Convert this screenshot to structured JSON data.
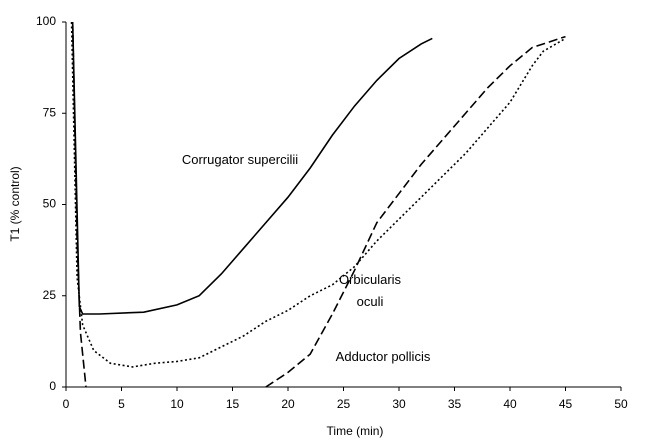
{
  "chart_data": {
    "type": "line",
    "xlabel": "Time (min)",
    "ylabel": "T1 (% control)",
    "xlim": [
      0,
      50
    ],
    "xticks": [
      0,
      5,
      10,
      15,
      20,
      25,
      30,
      35,
      40,
      45,
      50
    ],
    "ylim": [
      0,
      100
    ],
    "yticks": [
      0,
      25,
      50,
      75,
      100
    ],
    "grid": false,
    "series": [
      {
        "name": "Corrugator supercilii",
        "color": "#000000",
        "style": "solid",
        "x": [
          0.6,
          1.2,
          1.5,
          3,
          7,
          10,
          12,
          14,
          16,
          18,
          20,
          22,
          24,
          26,
          28,
          30,
          32,
          33
        ],
        "values": [
          100,
          22,
          20,
          20,
          20.5,
          22.5,
          25,
          31,
          38,
          45,
          52,
          60,
          69,
          77,
          84,
          90,
          94,
          95.5
        ]
      },
      {
        "name": "Orbicularis oculi",
        "color": "#000000",
        "style": "dotted",
        "x": [
          0.5,
          1,
          1.5,
          2.5,
          4,
          6,
          8,
          10,
          12,
          14,
          16,
          18,
          20,
          22,
          24,
          26,
          28,
          30,
          32,
          34,
          36,
          38,
          40,
          42,
          43,
          45
        ],
        "values": [
          100,
          30,
          17,
          10,
          6.5,
          5.5,
          6.5,
          7,
          8,
          11,
          14,
          18,
          21,
          25,
          28,
          33,
          40,
          46,
          52,
          58,
          64,
          71,
          78,
          88,
          92,
          95.5
        ]
      },
      {
        "name": "Adductor pollicis",
        "color": "#000000",
        "style": "dashed",
        "x": [
          0.6,
          1,
          1.3,
          1.8,
          null,
          18,
          20,
          22,
          24,
          26,
          28,
          30,
          32,
          34,
          36,
          38,
          40,
          42,
          44,
          45
        ],
        "values": [
          100,
          40,
          15,
          0,
          null,
          0,
          4,
          9,
          20,
          32,
          45,
          53,
          61,
          68,
          75,
          82,
          88,
          93,
          95,
          96
        ]
      }
    ]
  }
}
